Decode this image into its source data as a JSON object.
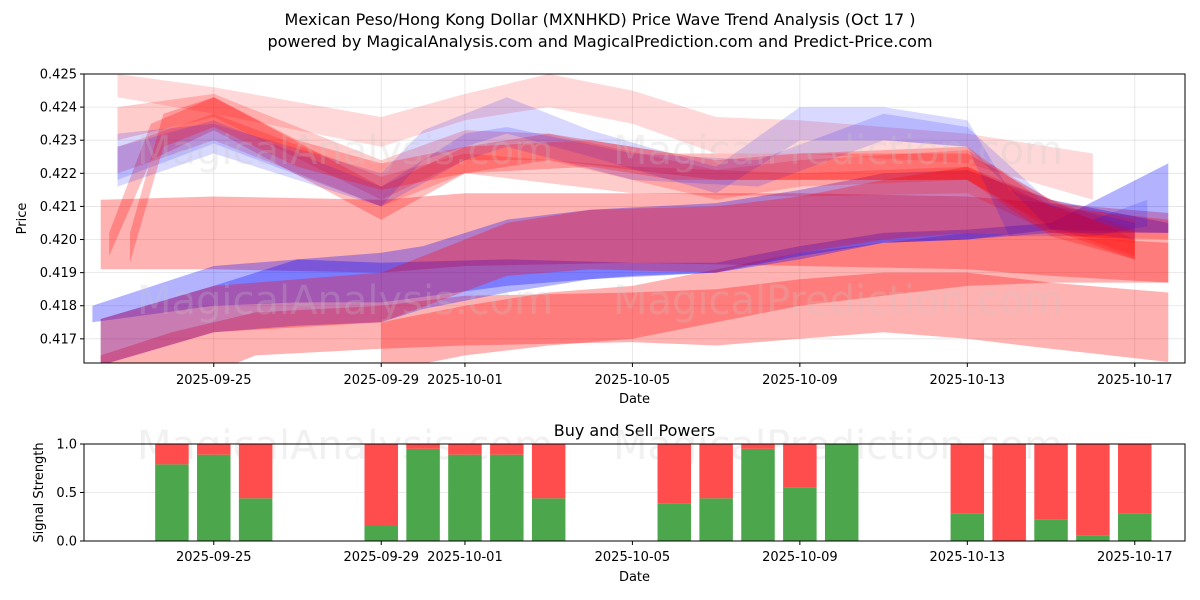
{
  "header": {
    "title": "Mexican Peso/Hong Kong Dollar (MXNHKD) Price Wave Trend Analysis (Oct 17 )",
    "subtitle": "powered by MagicalAnalysis.com and MagicalPrediction.com and Predict-Price.com"
  },
  "watermarks": [
    "MagicalAnalysis.com",
    "MagicalPrediction.com"
  ],
  "colors": {
    "red": "#ff0000",
    "blue": "#0000ff",
    "buy": "#4ca64c",
    "sell": "#ff4c4c"
  },
  "chart_data": [
    {
      "type": "area",
      "title": "",
      "xlabel": "Date",
      "ylabel": "Price",
      "x_ticks": [
        "2025-09-25",
        "2025-09-29",
        "2025-10-01",
        "2025-10-05",
        "2025-10-09",
        "2025-10-13",
        "2025-10-17"
      ],
      "x_tick_days": [
        0,
        4,
        6,
        10,
        14,
        18,
        22
      ],
      "x_range_days": [
        -3.1,
        23.2
      ],
      "y_ticks": [
        "0.417",
        "0.418",
        "0.419",
        "0.420",
        "0.421",
        "0.422",
        "0.423",
        "0.424",
        "0.425"
      ],
      "ylim": [
        0.41627,
        0.425
      ],
      "grid": true,
      "x_origin_date": "2025-09-25",
      "series": [
        {
          "name": "red-wide-1",
          "color": "red",
          "opacity": 0.3,
          "points": [
            [
              -2.7,
              0.4212,
              0.4191
            ],
            [
              0,
              0.4213,
              0.4191
            ],
            [
              4,
              0.4212,
              0.419
            ],
            [
              6,
              0.4214,
              0.4192
            ],
            [
              10,
              0.4214,
              0.4193
            ],
            [
              14,
              0.4214,
              0.4192
            ],
            [
              18,
              0.4213,
              0.4191
            ],
            [
              20,
              0.4211,
              0.4189
            ],
            [
              22.8,
              0.4208,
              0.4187
            ]
          ]
        },
        {
          "name": "red-wide-2",
          "color": "red",
          "opacity": 0.3,
          "points": [
            [
              -2.7,
              0.4165,
              0.415
            ],
            [
              -1,
              0.4172,
              0.4155
            ],
            [
              1,
              0.4178,
              0.4165
            ],
            [
              4,
              0.418,
              0.4167
            ],
            [
              6,
              0.4183,
              0.4168
            ],
            [
              10,
              0.4184,
              0.4169
            ],
            [
              12,
              0.4185,
              0.4168
            ],
            [
              14,
              0.4188,
              0.417
            ],
            [
              16,
              0.419,
              0.4172
            ],
            [
              18,
              0.419,
              0.417
            ],
            [
              20,
              0.4187,
              0.4167
            ],
            [
              22.8,
              0.4184,
              0.4163
            ]
          ]
        },
        {
          "name": "red-wide-3",
          "color": "red",
          "opacity": 0.3,
          "points": [
            [
              4,
              0.4175,
              0.416
            ],
            [
              6,
              0.418,
              0.4165
            ],
            [
              8,
              0.4184,
              0.4168
            ],
            [
              10,
              0.4186,
              0.417
            ],
            [
              14,
              0.4196,
              0.418
            ],
            [
              16,
              0.4199,
              0.4183
            ],
            [
              18,
              0.4202,
              0.4186
            ],
            [
              20,
              0.4201,
              0.4187
            ],
            [
              22.8,
              0.4199,
              0.4187
            ]
          ]
        },
        {
          "name": "blue-wide-1",
          "color": "blue",
          "opacity": 0.3,
          "points": [
            [
              -2.9,
              0.418,
              0.4175
            ],
            [
              0,
              0.4192,
              0.418
            ],
            [
              2,
              0.4194,
              0.4181
            ],
            [
              4,
              0.4193,
              0.4181
            ],
            [
              7,
              0.4194,
              0.4186
            ],
            [
              10,
              0.4193,
              0.4189
            ],
            [
              12,
              0.4193,
              0.419
            ],
            [
              14,
              0.4198,
              0.4195
            ],
            [
              16,
              0.4202,
              0.4199
            ],
            [
              18,
              0.4203,
              0.42
            ],
            [
              20,
              0.4205,
              0.4202
            ],
            [
              22.8,
              0.4223,
              0.4202
            ]
          ]
        },
        {
          "name": "purple-wide-1",
          "color": "blue",
          "opacity": 0.3,
          "points": [
            [
              -2.7,
              0.4176,
              0.4162
            ],
            [
              0,
              0.4186,
              0.4172
            ],
            [
              2,
              0.4194,
              0.4174
            ],
            [
              4,
              0.4196,
              0.4175
            ],
            [
              5,
              0.4198,
              0.4179
            ],
            [
              7,
              0.4206,
              0.4184
            ],
            [
              9,
              0.4209,
              0.4188
            ],
            [
              12,
              0.4211,
              0.419
            ],
            [
              14,
              0.4215,
              0.4194
            ],
            [
              16,
              0.422,
              0.4199
            ],
            [
              18,
              0.4221,
              0.42
            ],
            [
              20,
              0.4212,
              0.4203
            ],
            [
              22.8,
              0.4205,
              0.4202
            ]
          ]
        },
        {
          "name": "purple-wide-2",
          "color": "red",
          "opacity": 0.3,
          "points": [
            [
              -2.7,
              0.4176,
              0.4162
            ],
            [
              0,
              0.4186,
              0.4172
            ],
            [
              4,
              0.419,
              0.4175
            ],
            [
              7,
              0.4205,
              0.4189
            ],
            [
              9,
              0.4209,
              0.4191
            ],
            [
              12,
              0.421,
              0.419
            ],
            [
              14,
              0.4213,
              0.4196
            ],
            [
              16,
              0.4218,
              0.42
            ],
            [
              18,
              0.4222,
              0.4202
            ],
            [
              20,
              0.421,
              0.4201
            ],
            [
              22.8,
              0.4206,
              0.42
            ]
          ]
        },
        {
          "name": "red-thin-1",
          "color": "red",
          "opacity": 0.15,
          "points": [
            [
              -2.3,
              0.425,
              0.4243
            ],
            [
              0,
              0.4246,
              0.4238
            ],
            [
              4,
              0.4237,
              0.4228
            ],
            [
              6,
              0.4244,
              0.4236
            ],
            [
              8,
              0.425,
              0.424
            ],
            [
              10,
              0.4245,
              0.4235
            ],
            [
              12,
              0.4237,
              0.4226
            ],
            [
              14,
              0.4236,
              0.4226
            ],
            [
              18,
              0.4232,
              0.4223
            ],
            [
              21,
              0.4226,
              0.4212
            ]
          ]
        },
        {
          "name": "red-thin-2",
          "color": "red",
          "opacity": 0.2,
          "points": [
            [
              -2.3,
              0.424,
              0.423
            ],
            [
              0,
              0.4244,
              0.4237
            ],
            [
              4,
              0.4224,
              0.4212
            ],
            [
              6,
              0.4233,
              0.4224
            ],
            [
              8,
              0.4232,
              0.4224
            ],
            [
              12,
              0.4221,
              0.4212
            ],
            [
              14,
              0.4224,
              0.4216
            ],
            [
              18,
              0.4227,
              0.4218
            ],
            [
              20,
              0.4212,
              0.4204
            ],
            [
              22,
              0.4203,
              0.4195
            ]
          ]
        },
        {
          "name": "red-thin-3",
          "color": "red",
          "opacity": 0.25,
          "points": [
            [
              -2.5,
              0.4202,
              0.4195
            ],
            [
              -1.5,
              0.4235,
              0.4224
            ],
            [
              0,
              0.4243,
              0.4233
            ],
            [
              4,
              0.4216,
              0.4206
            ],
            [
              6,
              0.4228,
              0.422
            ],
            [
              8,
              0.4232,
              0.4224
            ],
            [
              12,
              0.4224,
              0.4218
            ],
            [
              14,
              0.4226,
              0.4218
            ],
            [
              18,
              0.4226,
              0.4218
            ],
            [
              20,
              0.4212,
              0.4203
            ],
            [
              22,
              0.42,
              0.4194
            ]
          ]
        },
        {
          "name": "red-thin-4",
          "color": "red",
          "opacity": 0.2,
          "points": [
            [
              -2.3,
              0.4228,
              0.422
            ],
            [
              0,
              0.4238,
              0.423
            ],
            [
              4,
              0.4219,
              0.421
            ],
            [
              6,
              0.4226,
              0.422
            ],
            [
              10,
              0.4222,
              0.4214
            ],
            [
              14,
              0.422,
              0.4213
            ],
            [
              18,
              0.4222,
              0.4214
            ],
            [
              20,
              0.4212,
              0.4202
            ],
            [
              22,
              0.4206,
              0.4199
            ]
          ]
        },
        {
          "name": "blue-thin-1",
          "color": "blue",
          "opacity": 0.15,
          "points": [
            [
              -2.3,
              0.4232,
              0.4216
            ],
            [
              0,
              0.4235,
              0.4226
            ],
            [
              4,
              0.422,
              0.421
            ],
            [
              5,
              0.4233,
              0.4224
            ],
            [
              7,
              0.4243,
              0.4232
            ],
            [
              9,
              0.4233,
              0.4225
            ],
            [
              12,
              0.4222,
              0.4214
            ],
            [
              14,
              0.424,
              0.423
            ],
            [
              16,
              0.424,
              0.423
            ],
            [
              18,
              0.4236,
              0.4228
            ],
            [
              19,
              0.4215,
              0.4201
            ],
            [
              21,
              0.4206,
              0.4201
            ],
            [
              22.3,
              0.4212,
              0.4204
            ]
          ]
        },
        {
          "name": "blue-thin-2",
          "color": "blue",
          "opacity": 0.15,
          "points": [
            [
              -2.3,
              0.4228,
              0.4218
            ],
            [
              0,
              0.4236,
              0.4229
            ],
            [
              4,
              0.4216,
              0.421
            ],
            [
              6,
              0.4232,
              0.4224
            ],
            [
              7,
              0.4234,
              0.4228
            ],
            [
              10,
              0.4226,
              0.4218
            ],
            [
              13,
              0.4224,
              0.4216
            ],
            [
              16,
              0.4238,
              0.423
            ],
            [
              18,
              0.4234,
              0.4228
            ],
            [
              20,
              0.4211,
              0.4203
            ],
            [
              22,
              0.4205,
              0.42
            ]
          ]
        },
        {
          "name": "red-zigzag",
          "color": "red",
          "opacity": 0.25,
          "points": [
            [
              -2,
              0.4202,
              0.4193
            ],
            [
              -1.2,
              0.4238,
              0.4228
            ],
            [
              0,
              0.4243,
              0.4234
            ],
            [
              2,
              0.423,
              0.4222
            ],
            [
              4,
              0.4223,
              0.4215
            ],
            [
              6,
              0.4228,
              0.422
            ],
            [
              9,
              0.423,
              0.4222
            ],
            [
              11,
              0.4226,
              0.4218
            ],
            [
              14,
              0.4226,
              0.4218
            ],
            [
              18,
              0.4228,
              0.4218
            ],
            [
              20,
              0.421,
              0.4201
            ],
            [
              22,
              0.4202,
              0.4194
            ]
          ]
        }
      ]
    },
    {
      "type": "bar",
      "title": "Buy and Sell Powers",
      "xlabel": "Date",
      "ylabel": "Signal Strength",
      "ylim": [
        0,
        1
      ],
      "y_ticks": [
        "0.0",
        "0.5",
        "1.0"
      ],
      "x_ticks": [
        "2025-09-25",
        "2025-09-29",
        "2025-10-01",
        "2025-10-05",
        "2025-10-09",
        "2025-10-13",
        "2025-10-17"
      ],
      "x_tick_days": [
        0,
        4,
        6,
        10,
        14,
        18,
        22
      ],
      "grid": true,
      "categories": [
        "2025-09-24",
        "2025-09-25",
        "2025-09-26",
        "2025-09-29",
        "2025-09-30",
        "2025-10-01",
        "2025-10-02",
        "2025-10-03",
        "2025-10-06",
        "2025-10-07",
        "2025-10-08",
        "2025-10-09",
        "2025-10-10",
        "2025-10-13",
        "2025-10-14",
        "2025-10-15",
        "2025-10-16",
        "2025-10-17"
      ],
      "category_days": [
        -1,
        0,
        1,
        4,
        5,
        6,
        7,
        8,
        11,
        12,
        13,
        14,
        15,
        18,
        19,
        20,
        21,
        22
      ],
      "series": [
        {
          "name": "Buy",
          "values": [
            0.79,
            0.89,
            0.44,
            0.16,
            0.95,
            0.89,
            0.89,
            0.44,
            0.39,
            0.44,
            0.95,
            0.55,
            1.0,
            0.28,
            0.0,
            0.22,
            0.06,
            0.28
          ]
        },
        {
          "name": "Sell",
          "values": [
            0.21,
            0.11,
            0.56,
            0.84,
            0.05,
            0.11,
            0.11,
            0.56,
            0.61,
            0.56,
            0.05,
            0.45,
            0.0,
            0.72,
            1.0,
            0.78,
            0.94,
            0.72
          ]
        }
      ]
    }
  ]
}
